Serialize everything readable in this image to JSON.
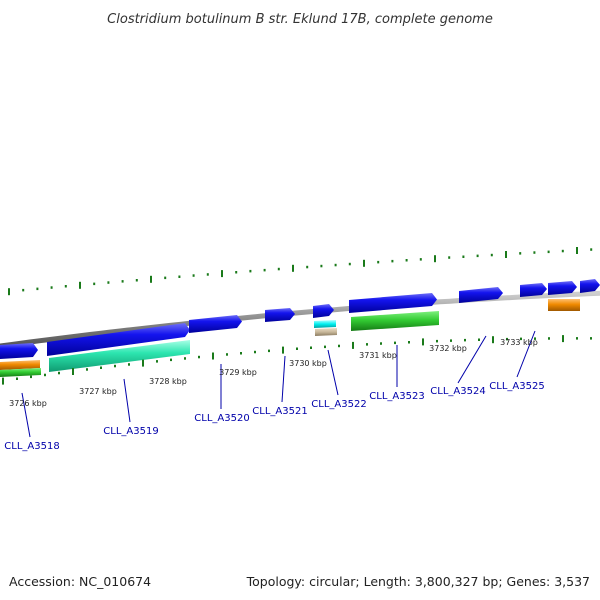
{
  "title": "Clostridium botulinum B str. Eklund 17B, complete genome",
  "footer": {
    "accession": "Accession: NC_010674",
    "summary": "Topology: circular; Length: 3,800,327 bp; Genes: 3,537"
  },
  "colors": {
    "forward_gene": "#0000e0",
    "backbone": "#888888",
    "tick": "#1a7a1a",
    "label_link": "#0000aa",
    "feature_green": "#33cc33",
    "feature_teal": "#33e6b3",
    "feature_orange": "#f08a00",
    "feature_cyan": "#00f0f0",
    "feature_tan": "#c8b89a"
  },
  "kbp_labels": [
    "3726 kbp",
    "3727 kbp",
    "3728 kbp",
    "3729 kbp",
    "3730 kbp",
    "3731 kbp",
    "3732 kbp",
    "3733 kbp"
  ],
  "gene_labels": [
    "CLL_A3518",
    "CLL_A3519",
    "CLL_A3520",
    "CLL_A3521",
    "CLL_A3522",
    "CLL_A3523",
    "CLL_A3524",
    "CLL_A3525"
  ]
}
